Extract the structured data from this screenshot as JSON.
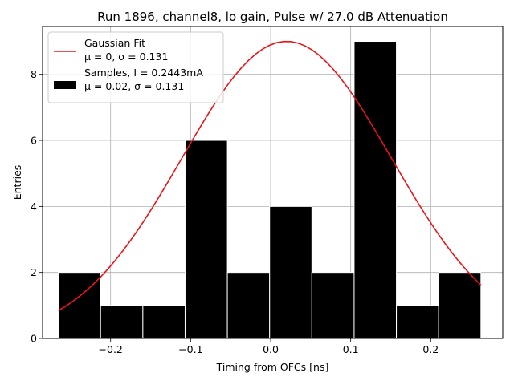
{
  "chart_data": {
    "type": "bar",
    "title": "Run 1896, channel8, lo gain, Pulse w/ 27.0 dB Attenuation",
    "xlabel": "Timing from OFCs [ns]",
    "ylabel": "Entries",
    "xlim": [
      -0.285,
      0.29
    ],
    "ylim": [
      0,
      9.45
    ],
    "grid": true,
    "x_ticks": [
      -0.2,
      -0.1,
      0.0,
      0.1,
      0.2
    ],
    "x_tick_labels": [
      "−0.2",
      "−0.1",
      "0.0",
      "0.1",
      "0.2"
    ],
    "y_ticks": [
      0,
      2,
      4,
      6,
      8
    ],
    "y_tick_labels": [
      "0",
      "2",
      "4",
      "6",
      "8"
    ],
    "histogram": {
      "name": "Samples",
      "bin_edges": [
        -0.2653,
        -0.2125,
        -0.1597,
        -0.1069,
        -0.0541,
        -0.0013,
        0.0515,
        0.1043,
        0.1571,
        0.2099,
        0.2627
      ],
      "counts": [
        2,
        1,
        1,
        6,
        2,
        4,
        2,
        9,
        1,
        2
      ],
      "color": "#000000",
      "edge_color": "#ffffff"
    },
    "fit": {
      "name": "Gaussian Fit",
      "mu": 0.02,
      "sigma": 0.131,
      "amplitude": 9.0,
      "x_range": [
        -0.2653,
        0.2627
      ],
      "color": "#e8141b"
    },
    "legend": {
      "position": "top-left",
      "entries": [
        {
          "key": "fit",
          "lines": [
            "Gaussian Fit",
            "μ = 0, σ = 0.131"
          ]
        },
        {
          "key": "samples",
          "lines": [
            "Samples, I = 0.2443mA",
            "μ = 0.02, σ = 0.131"
          ]
        }
      ]
    }
  }
}
